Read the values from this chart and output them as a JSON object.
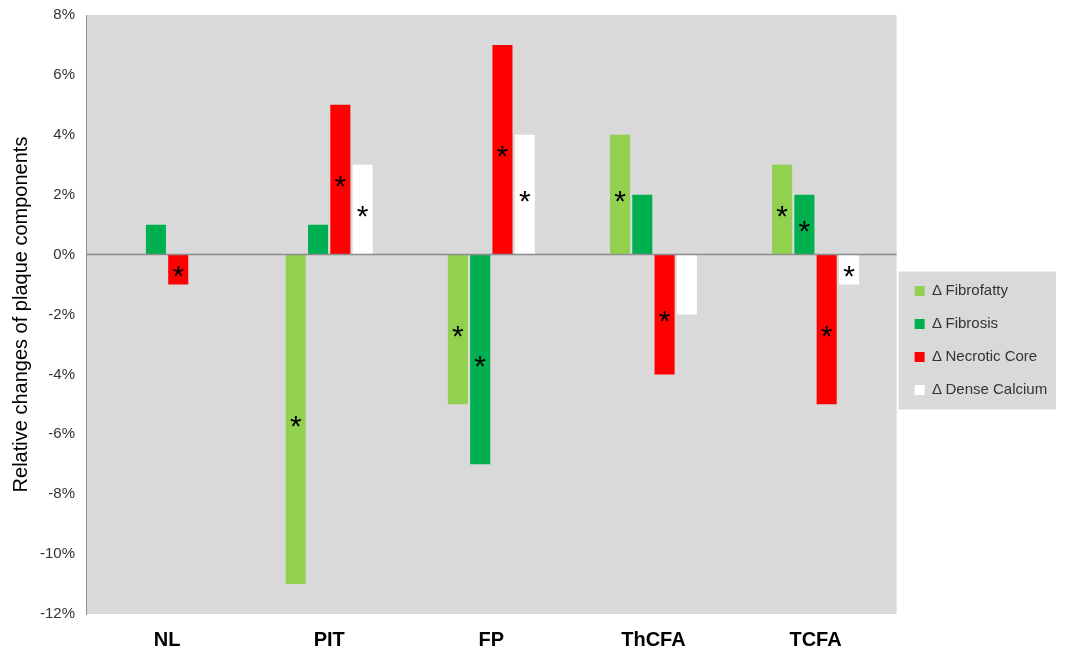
{
  "chart_data": {
    "type": "bar",
    "ylabel": "Relative changes of plaque components",
    "categories": [
      "NL",
      "PIT",
      "FP",
      "ThCFA",
      "TCFA"
    ],
    "series": [
      {
        "name": "Δ Fibrofatty",
        "color": "#92d050",
        "values": [
          0,
          -11,
          -5,
          4,
          3
        ],
        "value_labels": [
          null,
          "*",
          "*",
          "*",
          "*"
        ]
      },
      {
        "name": "Δ Fibrosis",
        "color": "#00b050",
        "values": [
          1,
          1,
          -7,
          2,
          2
        ],
        "value_labels": [
          null,
          null,
          "*",
          null,
          "*"
        ]
      },
      {
        "name": "Δ Necrotic Core",
        "color": "#ff0000",
        "values": [
          -1,
          5,
          7,
          -4,
          -5
        ],
        "value_labels": [
          "*",
          "*",
          "*",
          "*",
          "*"
        ]
      },
      {
        "name": "Δ Dense Calcium",
        "color": "#ffffff",
        "values": [
          0,
          3,
          4,
          -2,
          -1
        ],
        "value_labels": [
          null,
          "*",
          "*",
          null,
          "*"
        ]
      }
    ],
    "ylim": [
      -12,
      8
    ],
    "yticks": [
      {
        "value": -12,
        "label": "-12%"
      },
      {
        "value": -10,
        "label": "-10%"
      },
      {
        "value": -8,
        "label": "-8%"
      },
      {
        "value": -6,
        "label": "-6%"
      },
      {
        "value": -4,
        "label": "-4%"
      },
      {
        "value": -2,
        "label": "-2%"
      },
      {
        "value": 0,
        "label": "0%"
      },
      {
        "value": 2,
        "label": "2%"
      },
      {
        "value": 4,
        "label": "4%"
      },
      {
        "value": 6,
        "label": "6%"
      },
      {
        "value": 8,
        "label": "8%"
      }
    ],
    "ref_lines": [
      {
        "axis": "y",
        "value": 0,
        "color": "#8c8c8c"
      }
    ],
    "grid": false,
    "legend": "right"
  }
}
